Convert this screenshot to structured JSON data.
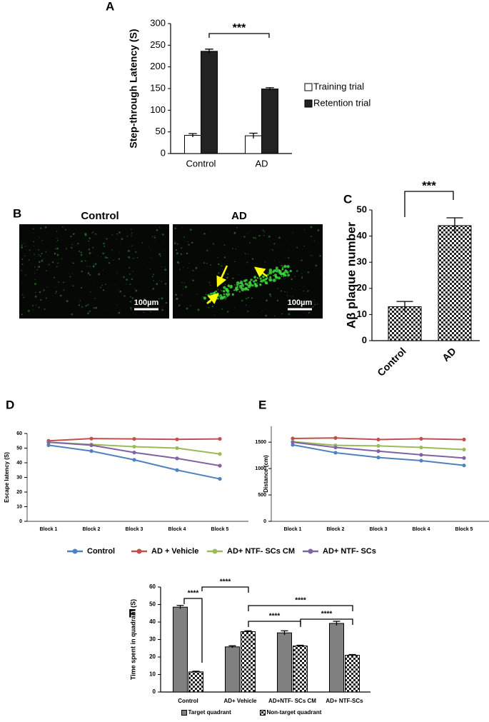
{
  "chart_data": [
    {
      "type": "bar",
      "panel_label": "A",
      "y_label": "Step-through Latency (S)",
      "categories": [
        "Control",
        "AD"
      ],
      "series": [
        {
          "name": "Training trial",
          "color": "#ffffff",
          "values": [
            42,
            41
          ],
          "errors": [
            4,
            6
          ]
        },
        {
          "name": "Retention trial",
          "color": "#222222",
          "values": [
            236,
            149
          ],
          "errors": [
            5,
            3
          ]
        }
      ],
      "ylim": [
        0,
        300
      ],
      "yticks": [
        0,
        50,
        100,
        150,
        200,
        250,
        300
      ],
      "legend": "right",
      "annotations": [
        "***"
      ]
    },
    {
      "type": "bar",
      "panel_label": "C",
      "y_label": "Aβ plaque number",
      "categories": [
        "Control",
        "AD"
      ],
      "series": [
        {
          "color": "checkered",
          "values": [
            13,
            44
          ],
          "errors": [
            2,
            3
          ]
        }
      ],
      "ylim": [
        0,
        50
      ],
      "yticks": [
        0,
        10,
        20,
        30,
        40,
        50
      ],
      "annotations": [
        "***"
      ]
    },
    {
      "type": "line",
      "panel_label": "D",
      "y_label": "Escape latency (S)",
      "categories": [
        "Block 1",
        "Block 2",
        "Block 3",
        "Block 4",
        "Block 5"
      ],
      "series": [
        {
          "name": "Control",
          "color": "#4f81bd",
          "values": [
            52,
            48,
            42,
            35,
            29
          ]
        },
        {
          "name": "AD + Vehicle",
          "color": "#c0504d",
          "values": [
            55,
            56.5,
            56.3,
            56,
            56.3
          ]
        },
        {
          "name": "AD+ NTF- SCs CM",
          "color": "#9bbb59",
          "values": [
            54,
            52.5,
            51,
            50,
            46
          ]
        },
        {
          "name": "AD+ NTF- SCs",
          "color": "#8064a2",
          "values": [
            54,
            52,
            47,
            43,
            38
          ]
        }
      ],
      "ylim": [
        0,
        60
      ],
      "yticks": [
        0,
        10,
        20,
        30,
        40,
        50,
        60
      ],
      "legend": "bottom"
    },
    {
      "type": "line",
      "panel_label": "E",
      "y_label": "Distance (cm)",
      "categories": [
        "Block 1",
        "Block 2",
        "Block 3",
        "Block 4",
        "Block 5"
      ],
      "series": [
        {
          "color": "#4f81bd",
          "values": [
            1450,
            1300,
            1210,
            1150,
            1060
          ]
        },
        {
          "color": "#c0504d",
          "values": [
            1570,
            1580,
            1550,
            1565,
            1550
          ]
        },
        {
          "color": "#9bbb59",
          "values": [
            1510,
            1440,
            1430,
            1400,
            1360
          ]
        },
        {
          "color": "#8064a2",
          "values": [
            1500,
            1400,
            1330,
            1260,
            1200
          ]
        }
      ],
      "ylim": [
        0,
        1800
      ],
      "yticks": [
        0,
        500,
        1000,
        1500
      ]
    },
    {
      "type": "bar",
      "panel_label": "F",
      "y_label": "Time spent in quadrant (S)",
      "categories": [
        "Control",
        "AD+ Vehicle",
        "AD+NTF- SCs CM",
        "AD+ NTF-SCs"
      ],
      "series": [
        {
          "name": "Target quadrant",
          "color": "#808080",
          "values": [
            48.5,
            25.8,
            33.8,
            39.2
          ],
          "errors": [
            1,
            0.6,
            1.2,
            1.2
          ]
        },
        {
          "name": "Non-target quadrant",
          "color": "checkered",
          "values": [
            11.5,
            34.5,
            26.3,
            21
          ],
          "errors": [
            0.4,
            0.5,
            0.4,
            0.4
          ]
        }
      ],
      "ylim": [
        0,
        60
      ],
      "yticks": [
        0,
        10,
        20,
        30,
        40,
        50,
        60
      ],
      "legend": "bottom",
      "annotations": [
        "****",
        "****",
        "****",
        "****",
        "****"
      ]
    }
  ],
  "panel_b": {
    "label": "B",
    "images": [
      {
        "title": "Control",
        "scale_bar": "100µm"
      },
      {
        "title": "AD",
        "scale_bar": "100µm"
      }
    ]
  }
}
